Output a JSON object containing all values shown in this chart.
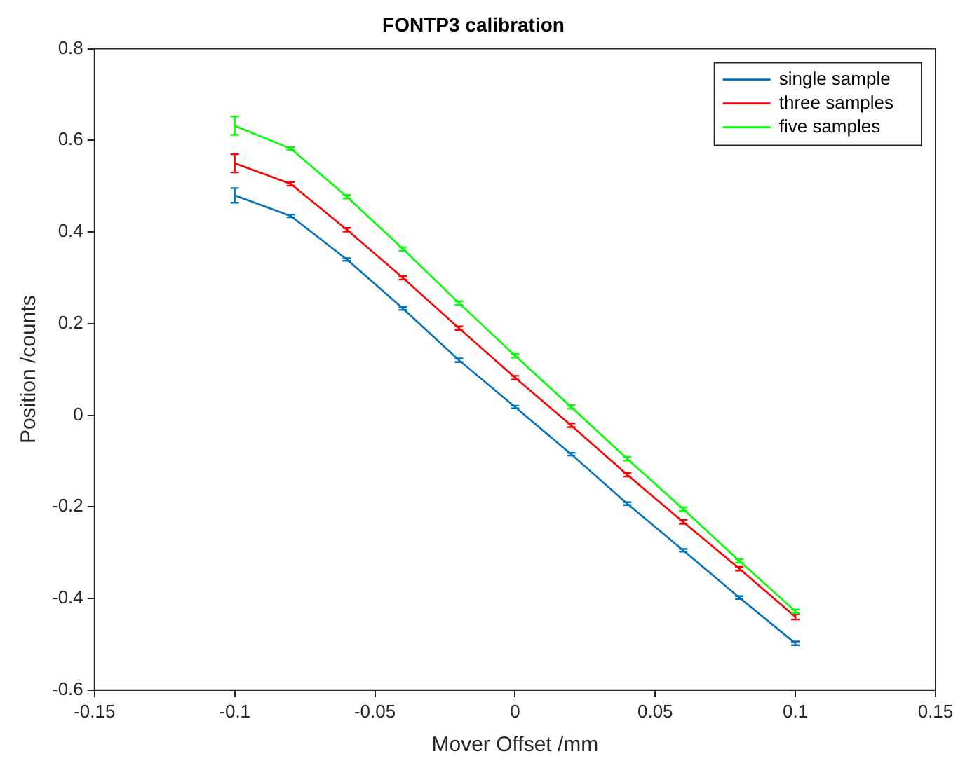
{
  "chart_data": {
    "type": "line",
    "title": "FONTP3 calibration",
    "xlabel": "Mover Offset /mm",
    "ylabel": "Position /counts",
    "x": [
      -0.1,
      -0.08,
      -0.06,
      -0.04,
      -0.02,
      0,
      0.02,
      0.04,
      0.06,
      0.08,
      0.1
    ],
    "series": [
      {
        "name": "single sample",
        "color": "#0072bd",
        "values": [
          0.48,
          0.435,
          0.34,
          0.233,
          0.12,
          0.018,
          -0.085,
          -0.193,
          -0.295,
          -0.398,
          -0.498
        ],
        "errors": [
          0.016,
          0.003,
          0.003,
          0.003,
          0.004,
          0.003,
          0.003,
          0.003,
          0.003,
          0.003,
          0.004
        ]
      },
      {
        "name": "three samples",
        "color": "#ff0000",
        "values": [
          0.55,
          0.505,
          0.405,
          0.3,
          0.19,
          0.082,
          -0.022,
          -0.13,
          -0.233,
          -0.335,
          -0.44
        ],
        "errors": [
          0.02,
          0.004,
          0.004,
          0.004,
          0.004,
          0.004,
          0.004,
          0.004,
          0.004,
          0.004,
          0.006
        ]
      },
      {
        "name": "five samples",
        "color": "#00ff00",
        "values": [
          0.632,
          0.582,
          0.477,
          0.363,
          0.245,
          0.13,
          0.018,
          -0.095,
          -0.205,
          -0.318,
          -0.428
        ],
        "errors": [
          0.02,
          0.003,
          0.004,
          0.004,
          0.004,
          0.004,
          0.004,
          0.004,
          0.004,
          0.004,
          0.004
        ]
      }
    ],
    "xlim": [
      -0.15,
      0.15
    ],
    "xticks": [
      -0.15,
      -0.1,
      -0.05,
      0,
      0.05,
      0.1,
      0.15
    ],
    "ylim": [
      -0.6,
      0.8
    ],
    "yticks": [
      -0.6,
      -0.4,
      -0.2,
      0,
      0.2,
      0.4,
      0.6,
      0.8
    ],
    "grid": false,
    "legend": "top right",
    "marker": "none",
    "line_style": "solid"
  }
}
